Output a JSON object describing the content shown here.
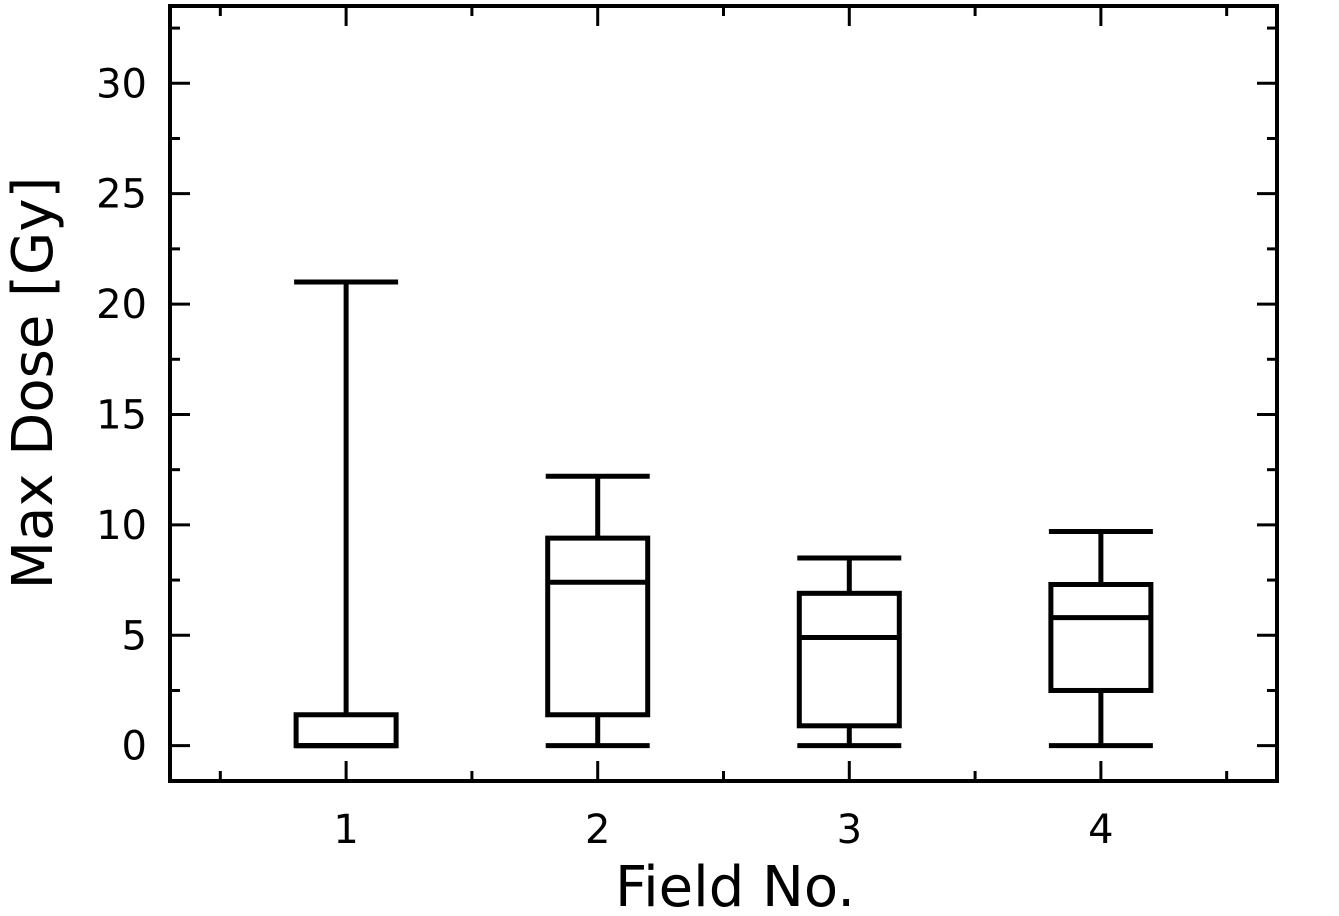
{
  "chart_data": {
    "type": "box",
    "xlabel": "Field No.",
    "ylabel": "Max Dose [Gy]",
    "ylim": [
      -1.6,
      33.5
    ],
    "xlim": [
      0.3,
      4.7
    ],
    "y_ticks": [
      0,
      5,
      10,
      15,
      20,
      25,
      30
    ],
    "categories": [
      "1",
      "2",
      "3",
      "4"
    ],
    "grid": false,
    "legend": "none",
    "boxes": [
      {
        "field": "1",
        "whisker_low": 0.0,
        "q1": 0.0,
        "median": 0.0,
        "q3": 1.4,
        "whisker_high": 21.0
      },
      {
        "field": "2",
        "whisker_low": 0.0,
        "q1": 1.4,
        "median": 7.4,
        "q3": 9.4,
        "whisker_high": 12.2
      },
      {
        "field": "3",
        "whisker_low": 0.0,
        "q1": 0.9,
        "median": 4.9,
        "q3": 6.9,
        "whisker_high": 8.5
      },
      {
        "field": "4",
        "whisker_low": 0.0,
        "q1": 2.5,
        "median": 5.8,
        "q3": 7.3,
        "whisker_high": 9.7
      }
    ]
  }
}
